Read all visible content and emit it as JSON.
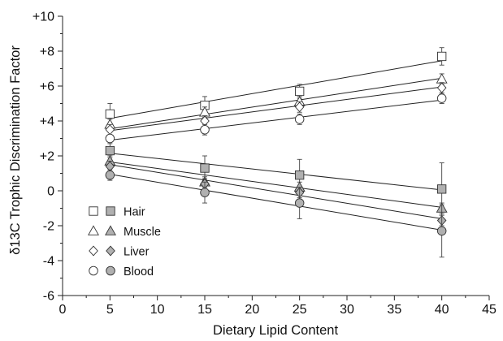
{
  "chart_data": {
    "type": "scatter",
    "xlabel": "Dietary Lipid Content",
    "ylabel": "δ13C Trophic Discrimination Factor",
    "xlim": [
      0,
      45
    ],
    "ylim": [
      -6,
      10
    ],
    "x_ticks": [
      "0",
      "5",
      "10",
      "15",
      "20",
      "25",
      "30",
      "35",
      "40",
      "45"
    ],
    "y_ticks": [
      "-6",
      "-4",
      "-2",
      "0",
      "+2",
      "+4",
      "+6",
      "+8",
      "+10"
    ],
    "legend_position": "bottom-left",
    "legend_entries": [
      "Hair",
      "Muscle",
      "Liver",
      "Blood"
    ],
    "x": [
      5,
      15,
      25,
      40
    ],
    "groups": [
      {
        "fill": "open",
        "color": "#ffffff",
        "series": [
          {
            "name": "Hair",
            "marker": "square",
            "y": [
              4.4,
              4.9,
              5.7,
              7.7
            ],
            "err": [
              0.6,
              0.5,
              0.4,
              0.5
            ],
            "fit": [
              4.15,
              7.45
            ]
          },
          {
            "name": "Muscle",
            "marker": "triangle",
            "y": [
              3.8,
              4.5,
              5.1,
              6.4
            ],
            "err": [
              0.3,
              0.3,
              0.3,
              0.3
            ],
            "fit": [
              3.55,
              6.45
            ]
          },
          {
            "name": "Liver",
            "marker": "diamond",
            "y": [
              3.5,
              4.0,
              4.8,
              5.9
            ],
            "err": [
              0.3,
              0.3,
              0.3,
              0.3
            ],
            "fit": [
              3.45,
              5.95
            ]
          },
          {
            "name": "Blood",
            "marker": "circle",
            "y": [
              3.0,
              3.5,
              4.1,
              5.3
            ],
            "err": [
              0.2,
              0.3,
              0.3,
              0.3
            ],
            "fit": [
              2.9,
              5.2
            ]
          }
        ]
      },
      {
        "fill": "filled",
        "color": "#b0b0b0",
        "series": [
          {
            "name": "Hair",
            "marker": "square",
            "y": [
              2.3,
              1.3,
              0.9,
              0.1
            ],
            "err": [
              0.4,
              0.7,
              0.9,
              1.5
            ],
            "fit": [
              2.15,
              0.05
            ]
          },
          {
            "name": "Muscle",
            "marker": "triangle",
            "y": [
              1.7,
              0.5,
              0.2,
              -1.0
            ],
            "err": [
              0.3,
              0.3,
              0.3,
              0.3
            ],
            "fit": [
              1.65,
              -0.95
            ]
          },
          {
            "name": "Liver",
            "marker": "diamond",
            "y": [
              1.4,
              0.4,
              -0.1,
              -1.7
            ],
            "err": [
              0.3,
              0.3,
              0.3,
              0.3
            ],
            "fit": [
              1.5,
              -1.6
            ]
          },
          {
            "name": "Blood",
            "marker": "circle",
            "y": [
              0.9,
              -0.1,
              -0.7,
              -2.3
            ],
            "err": [
              0.3,
              0.6,
              0.9,
              1.5
            ],
            "fit": [
              0.95,
              -2.25
            ]
          }
        ]
      }
    ]
  }
}
